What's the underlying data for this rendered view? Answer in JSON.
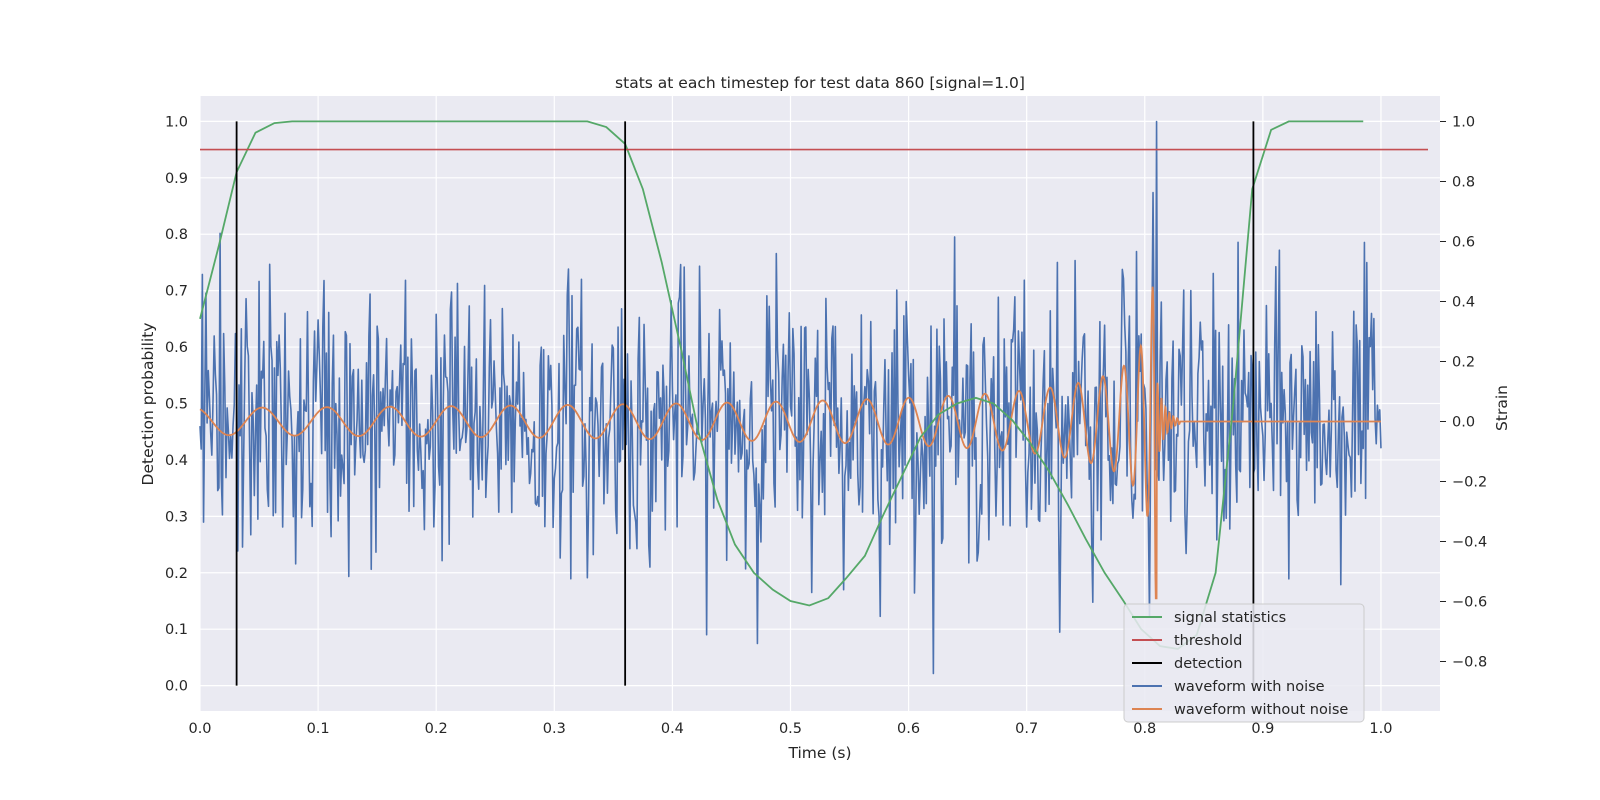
{
  "chart_data": {
    "type": "line",
    "title": "stats at each timestep for test data 860 [signal=1.0]",
    "xlabel": "Time (s)",
    "ylabel_left": "Detection probability",
    "ylabel_right": "Strain",
    "xlim": [
      0.0,
      1.05
    ],
    "ylim_left": [
      -0.045,
      1.045
    ],
    "ylim_right": [
      -0.965,
      1.085
    ],
    "x_ticks": [
      "0.0",
      "0.1",
      "0.2",
      "0.3",
      "0.4",
      "0.5",
      "0.6",
      "0.7",
      "0.8",
      "0.9",
      "1.0"
    ],
    "y_left_ticks": [
      "0.0",
      "0.1",
      "0.2",
      "0.3",
      "0.4",
      "0.5",
      "0.6",
      "0.7",
      "0.8",
      "0.9",
      "1.0"
    ],
    "y_right_ticks": [
      "−0.8",
      "−0.6",
      "−0.4",
      "−0.2",
      "0.0",
      "0.2",
      "0.4",
      "0.6",
      "0.8",
      "1.0"
    ],
    "grid": true,
    "background": "#eaeaf2",
    "legend_position": "lower-right",
    "legend": [
      {
        "label": "signal statistics",
        "color": "#55a868"
      },
      {
        "label": "threshold",
        "color": "#c44e52"
      },
      {
        "label": "detection",
        "color": "#000000"
      },
      {
        "label": "waveform with noise",
        "color": "#4c72b0"
      },
      {
        "label": "waveform without noise",
        "color": "#dd8452"
      }
    ],
    "threshold": 0.95,
    "detections_x": [
      0.031,
      0.36,
      0.892
    ],
    "signal_statistics": {
      "x": [
        0.0,
        0.016,
        0.031,
        0.047,
        0.063,
        0.078,
        0.094,
        0.11,
        0.125,
        0.141,
        0.157,
        0.172,
        0.188,
        0.203,
        0.219,
        0.235,
        0.25,
        0.266,
        0.282,
        0.297,
        0.313,
        0.328,
        0.344,
        0.36,
        0.375,
        0.391,
        0.407,
        0.422,
        0.438,
        0.453,
        0.469,
        0.485,
        0.5,
        0.516,
        0.532,
        0.547,
        0.563,
        0.578,
        0.594,
        0.61,
        0.625,
        0.641,
        0.657,
        0.672,
        0.688,
        0.703,
        0.719,
        0.735,
        0.75,
        0.766,
        0.782,
        0.797,
        0.813,
        0.828,
        0.844,
        0.86,
        0.875,
        0.891,
        0.907,
        0.922,
        0.938,
        0.953,
        0.969,
        0.985
      ],
      "y": [
        0.65,
        0.78,
        0.91,
        0.98,
        0.997,
        1.0,
        1.0,
        1.0,
        1.0,
        1.0,
        1.0,
        1.0,
        1.0,
        1.0,
        1.0,
        1.0,
        1.0,
        1.0,
        1.0,
        1.0,
        1.0,
        1.0,
        0.99,
        0.96,
        0.88,
        0.75,
        0.6,
        0.45,
        0.33,
        0.25,
        0.2,
        0.17,
        0.15,
        0.142,
        0.155,
        0.19,
        0.23,
        0.3,
        0.37,
        0.44,
        0.48,
        0.5,
        0.51,
        0.5,
        0.47,
        0.43,
        0.38,
        0.32,
        0.26,
        0.2,
        0.15,
        0.1,
        0.07,
        0.065,
        0.09,
        0.2,
        0.5,
        0.88,
        0.985,
        1.0,
        1.0,
        1.0,
        1.0,
        1.0
      ]
    },
    "waveform_without_noise": {
      "description_of_shape": "",
      "x_range": [
        0.0,
        1.0
      ],
      "chirp_merger_x": 0.81,
      "peak_amplitude": 0.6
    },
    "waveform_with_noise": {
      "x_range": [
        0.0,
        1.0
      ],
      "noise_std": 0.22,
      "max_value": 1.0
    }
  }
}
